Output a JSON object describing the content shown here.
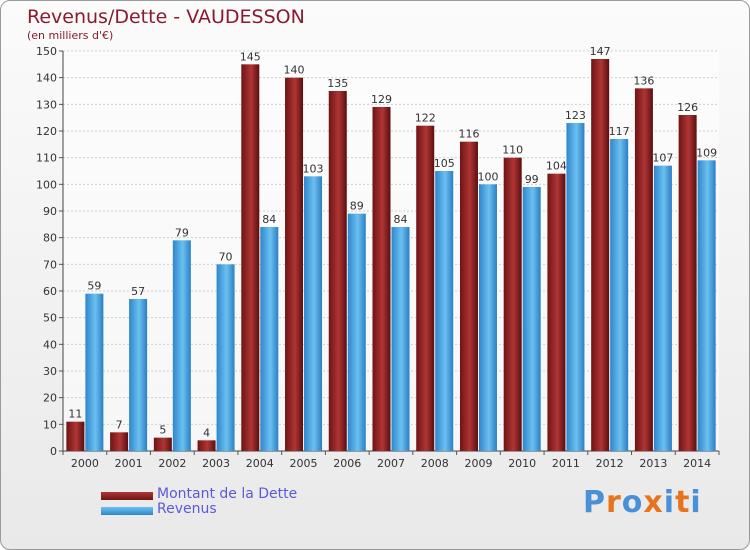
{
  "chart_data": {
    "type": "bar",
    "title": "Revenus/Dette - VAUDESSON",
    "subtitle": "(en milliers d'€)",
    "categories": [
      "2000",
      "2001",
      "2002",
      "2003",
      "2004",
      "2005",
      "2006",
      "2007",
      "2008",
      "2009",
      "2010",
      "2011",
      "2012",
      "2013",
      "2014"
    ],
    "series": [
      {
        "name": "Montant de la Dette",
        "color": "#7b1c1c",
        "values": [
          11,
          7,
          5,
          4,
          145,
          140,
          135,
          129,
          122,
          116,
          110,
          104,
          147,
          136,
          126
        ]
      },
      {
        "name": "Revenus",
        "color": "#4aa3e2",
        "values": [
          59,
          57,
          79,
          70,
          84,
          103,
          89,
          84,
          105,
          100,
          99,
          123,
          117,
          107,
          109
        ]
      }
    ],
    "ylim": [
      0,
      150
    ],
    "yticks": [
      0,
      10,
      20,
      30,
      40,
      50,
      60,
      70,
      80,
      90,
      100,
      110,
      120,
      130,
      140,
      150
    ],
    "grid": true,
    "legend": {
      "position": "bottom-left"
    }
  },
  "logo": {
    "text": "Proxiti",
    "letter_colors": [
      "#4a90d9",
      "#e8731e",
      "#4a90d9",
      "#e8731e",
      "#4a90d9",
      "#e8731e",
      "#4a90d9"
    ]
  }
}
